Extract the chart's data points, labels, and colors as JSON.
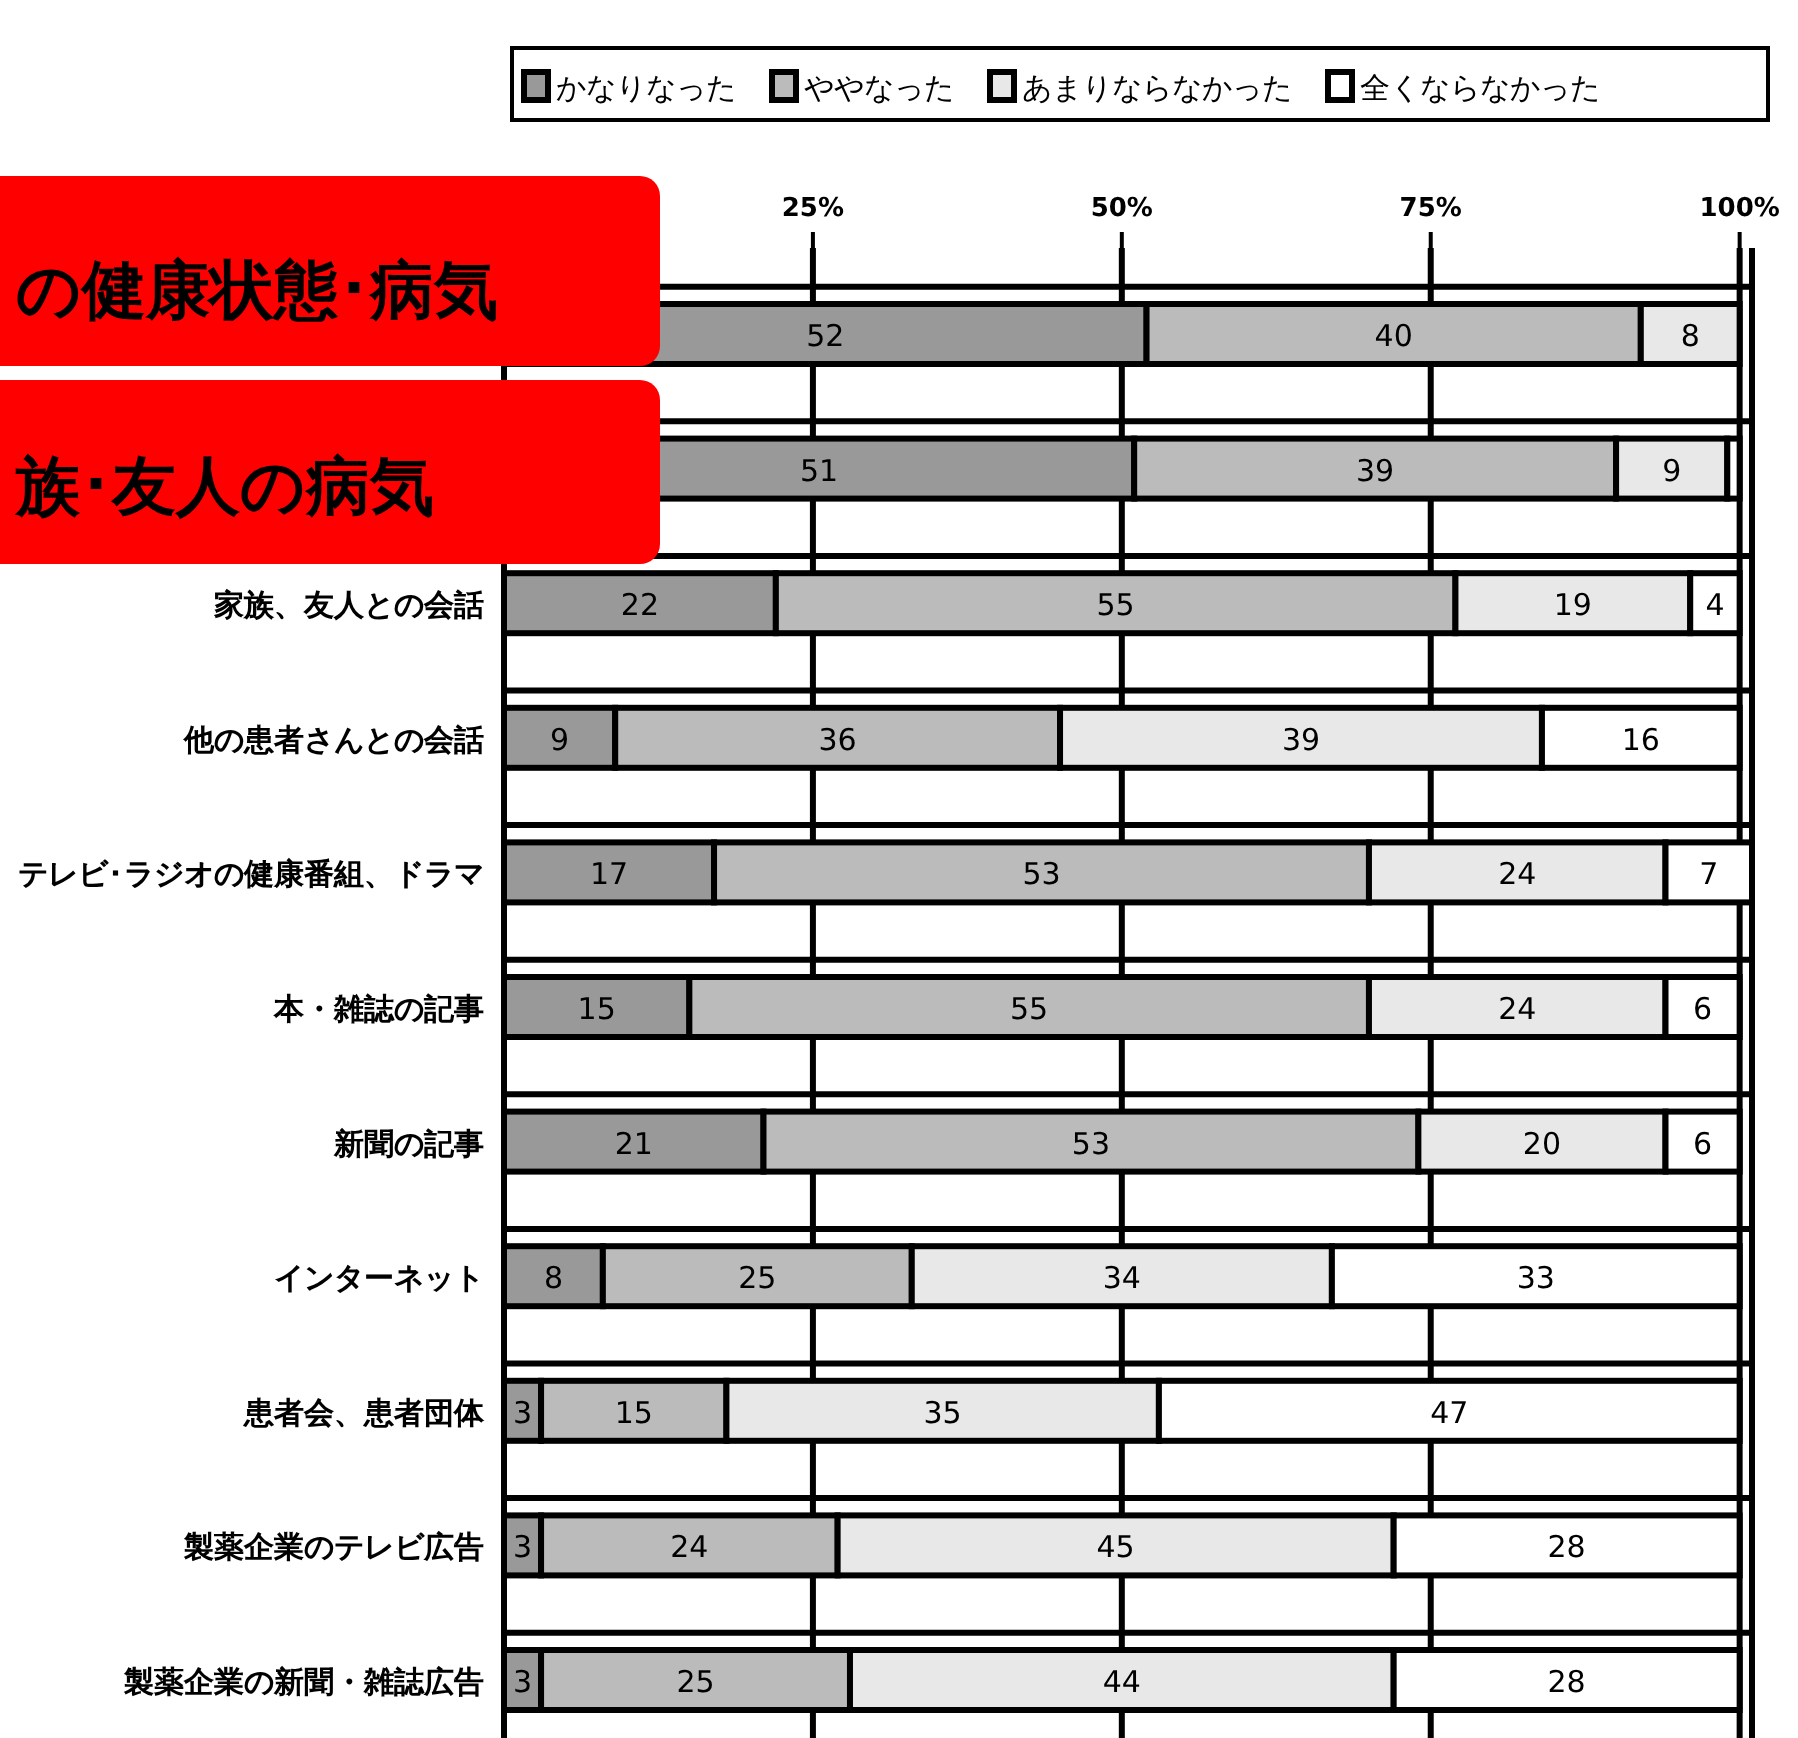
{
  "chart_data": {
    "type": "bar",
    "orientation": "horizontal",
    "stacked": true,
    "grid": "x",
    "legend": "top",
    "categories": [
      null,
      null,
      "家族、友人との会話",
      "他の患者さんとの会話",
      "テレビ･ラジオの健康番組、ドラマ",
      "本・雑誌の記事",
      "新聞の記事",
      "インターネット",
      "患者会、患者団体",
      "製薬企業のテレビ広告",
      "製薬企業の新聞・雑誌広告"
    ],
    "xlim": [
      0,
      101
    ],
    "xticks": [
      {
        "value": 0,
        "label": null
      },
      {
        "value": 25,
        "label": "25%"
      },
      {
        "value": 50,
        "label": "50%"
      },
      {
        "value": 75,
        "label": "75%"
      },
      {
        "value": 100,
        "label": "100%"
      }
    ],
    "series": [
      {
        "name": "かなりなった",
        "color": "#999999",
        "values": [
          52,
          51,
          22,
          9,
          17,
          15,
          21,
          8,
          3,
          3,
          3
        ],
        "value_labels": [
          "52",
          "51",
          "22",
          "9",
          "17",
          "15",
          "21",
          "8",
          "3",
          "3",
          "3"
        ]
      },
      {
        "name": "ややなった",
        "color": "#bbbbbb",
        "values": [
          40,
          39,
          55,
          36,
          53,
          55,
          53,
          25,
          15,
          24,
          25
        ],
        "value_labels": [
          "40",
          "39",
          "55",
          "36",
          "53",
          "55",
          "53",
          "25",
          "15",
          "24",
          "25"
        ]
      },
      {
        "name": "あまりならなかった",
        "color": "#e8e8e8",
        "values": [
          8,
          9,
          19,
          39,
          24,
          24,
          20,
          34,
          35,
          45,
          44
        ],
        "value_labels": [
          "8",
          "9",
          "19",
          "39",
          "24",
          "24",
          "20",
          "34",
          "35",
          "45",
          "44"
        ]
      },
      {
        "name": "全くならなかった",
        "color": "#ffffff",
        "values": [
          0,
          1,
          4,
          16,
          7,
          6,
          6,
          33,
          47,
          28,
          28
        ],
        "value_labels": [
          null,
          null,
          "4",
          "16",
          "7",
          "6",
          "6",
          "33",
          "47",
          "28",
          "28"
        ]
      }
    ],
    "annotations": [
      "の健康状態･病気",
      "族･友人の病気"
    ]
  }
}
